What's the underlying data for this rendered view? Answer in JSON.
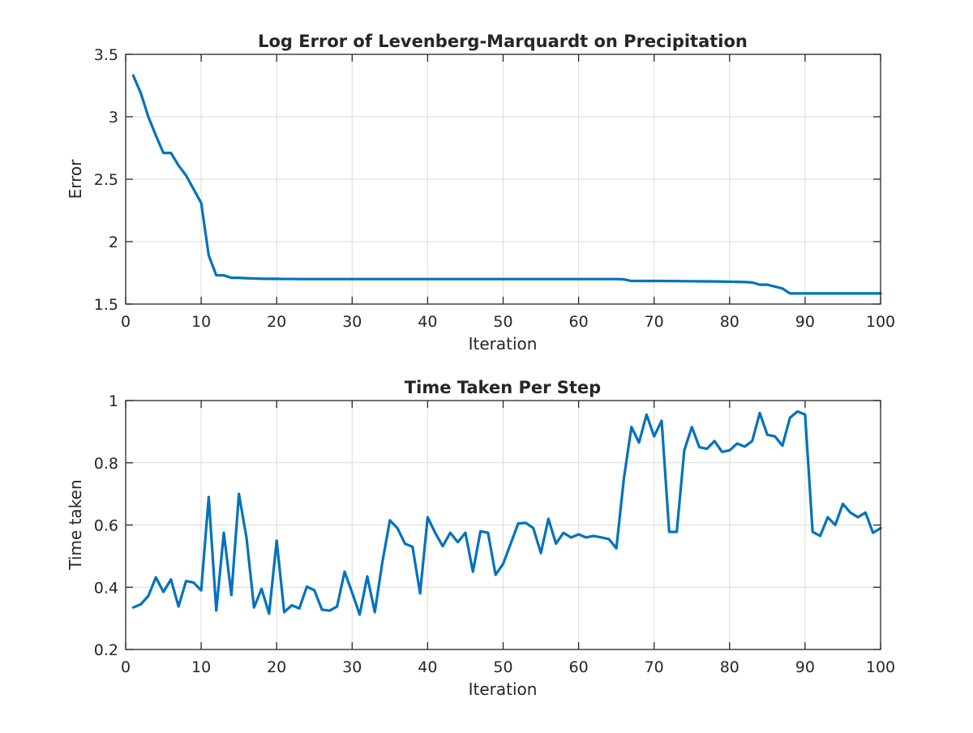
{
  "chart_data": [
    {
      "type": "line",
      "title": "Log Error of Levenberg-Marquardt on Precipitation",
      "xlabel": "Iteration",
      "ylabel": "Error",
      "xlim": [
        0,
        100
      ],
      "ylim": [
        1.5,
        3.5
      ],
      "xticks": [
        0,
        10,
        20,
        30,
        40,
        50,
        60,
        70,
        80,
        90,
        100
      ],
      "yticks": [
        1.5,
        2,
        2.5,
        3,
        3.5
      ],
      "xtick_labels": [
        "0",
        "10",
        "20",
        "30",
        "40",
        "50",
        "60",
        "70",
        "80",
        "90",
        "100"
      ],
      "ytick_labels": [
        "1.5",
        "2",
        "2.5",
        "3",
        "3.5"
      ],
      "grid": true,
      "color": "#0072BD",
      "series": [
        {
          "x": [
            1,
            2,
            3,
            4,
            5,
            6,
            7,
            8,
            9,
            10,
            11,
            12,
            13,
            14,
            15,
            16,
            17,
            18,
            19,
            20,
            21,
            22,
            23,
            24,
            25,
            26,
            27,
            28,
            29,
            30,
            31,
            32,
            33,
            34,
            35,
            36,
            37,
            38,
            39,
            40,
            41,
            42,
            43,
            44,
            45,
            46,
            47,
            48,
            49,
            50,
            51,
            52,
            53,
            54,
            55,
            56,
            57,
            58,
            59,
            60,
            61,
            62,
            63,
            64,
            65,
            66,
            67,
            68,
            69,
            70,
            71,
            72,
            73,
            74,
            75,
            76,
            77,
            78,
            79,
            80,
            81,
            82,
            83,
            84,
            85,
            86,
            87,
            88,
            89,
            90,
            91,
            92,
            93,
            94,
            95,
            96,
            97,
            98,
            99,
            100
          ],
          "values": [
            3.33,
            3.19,
            3.0,
            2.85,
            2.71,
            2.71,
            2.61,
            2.53,
            2.42,
            2.31,
            1.89,
            1.73,
            1.73,
            1.71,
            1.71,
            1.707,
            1.705,
            1.703,
            1.702,
            1.702,
            1.701,
            1.701,
            1.7,
            1.7,
            1.7,
            1.7,
            1.7,
            1.7,
            1.7,
            1.7,
            1.7,
            1.7,
            1.7,
            1.7,
            1.7,
            1.7,
            1.7,
            1.7,
            1.7,
            1.7,
            1.7,
            1.7,
            1.7,
            1.7,
            1.7,
            1.7,
            1.7,
            1.7,
            1.7,
            1.7,
            1.7,
            1.7,
            1.7,
            1.7,
            1.7,
            1.7,
            1.7,
            1.7,
            1.7,
            1.7,
            1.7,
            1.7,
            1.7,
            1.7,
            1.7,
            1.698,
            1.685,
            1.685,
            1.685,
            1.685,
            1.685,
            1.684,
            1.684,
            1.683,
            1.683,
            1.682,
            1.682,
            1.681,
            1.68,
            1.679,
            1.678,
            1.676,
            1.673,
            1.655,
            1.655,
            1.64,
            1.625,
            1.585,
            1.585,
            1.585,
            1.585,
            1.585,
            1.585,
            1.585,
            1.585,
            1.585,
            1.585,
            1.585,
            1.585,
            1.585
          ]
        }
      ]
    },
    {
      "type": "line",
      "title": "Time Taken Per Step",
      "xlabel": "Iteration",
      "ylabel": "Time taken",
      "xlim": [
        0,
        100
      ],
      "ylim": [
        0.2,
        1
      ],
      "xticks": [
        0,
        10,
        20,
        30,
        40,
        50,
        60,
        70,
        80,
        90,
        100
      ],
      "yticks": [
        0.2,
        0.4,
        0.6,
        0.8,
        1
      ],
      "xtick_labels": [
        "0",
        "10",
        "20",
        "30",
        "40",
        "50",
        "60",
        "70",
        "80",
        "90",
        "100"
      ],
      "ytick_labels": [
        "0.2",
        "0.4",
        "0.6",
        "0.8",
        "1"
      ],
      "grid": true,
      "color": "#0072BD",
      "series": [
        {
          "x": [
            1,
            2,
            3,
            4,
            5,
            6,
            7,
            8,
            9,
            10,
            11,
            12,
            13,
            14,
            15,
            16,
            17,
            18,
            19,
            20,
            21,
            22,
            23,
            24,
            25,
            26,
            27,
            28,
            29,
            30,
            31,
            32,
            33,
            34,
            35,
            36,
            37,
            38,
            39,
            40,
            41,
            42,
            43,
            44,
            45,
            46,
            47,
            48,
            49,
            50,
            51,
            52,
            53,
            54,
            55,
            56,
            57,
            58,
            59,
            60,
            61,
            62,
            63,
            64,
            65,
            66,
            67,
            68,
            69,
            70,
            71,
            72,
            73,
            74,
            75,
            76,
            77,
            78,
            79,
            80,
            81,
            82,
            83,
            84,
            85,
            86,
            87,
            88,
            89,
            90,
            91,
            92,
            93,
            94,
            95,
            96,
            97,
            98,
            99,
            100
          ],
          "values": [
            0.335,
            0.345,
            0.372,
            0.432,
            0.385,
            0.425,
            0.338,
            0.42,
            0.415,
            0.39,
            0.69,
            0.325,
            0.575,
            0.375,
            0.7,
            0.56,
            0.335,
            0.395,
            0.315,
            0.55,
            0.32,
            0.342,
            0.332,
            0.402,
            0.39,
            0.328,
            0.325,
            0.338,
            0.45,
            0.383,
            0.312,
            0.435,
            0.32,
            0.48,
            0.615,
            0.59,
            0.54,
            0.53,
            0.38,
            0.625,
            0.575,
            0.532,
            0.575,
            0.545,
            0.575,
            0.45,
            0.58,
            0.575,
            0.44,
            0.475,
            0.54,
            0.605,
            0.607,
            0.59,
            0.51,
            0.62,
            0.54,
            0.575,
            0.56,
            0.57,
            0.56,
            0.565,
            0.56,
            0.555,
            0.525,
            0.75,
            0.915,
            0.865,
            0.955,
            0.885,
            0.935,
            0.578,
            0.578,
            0.84,
            0.915,
            0.85,
            0.845,
            0.87,
            0.835,
            0.84,
            0.862,
            0.852,
            0.87,
            0.96,
            0.89,
            0.885,
            0.855,
            0.945,
            0.965,
            0.955,
            0.578,
            0.565,
            0.625,
            0.6,
            0.668,
            0.64,
            0.625,
            0.64,
            0.575,
            0.59
          ]
        }
      ]
    }
  ]
}
